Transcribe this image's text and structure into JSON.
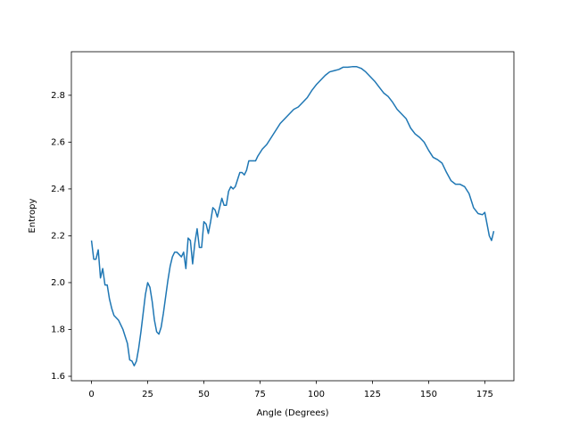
{
  "chart_data": {
    "type": "line",
    "xlabel": "Angle (Degrees)",
    "ylabel": "Entropy",
    "x": [
      0,
      1,
      2,
      3,
      4,
      5,
      6,
      7,
      8,
      9,
      10,
      11,
      12,
      13,
      14,
      15,
      16,
      17,
      18,
      19,
      20,
      21,
      22,
      23,
      24,
      25,
      26,
      27,
      28,
      29,
      30,
      31,
      32,
      33,
      34,
      35,
      36,
      37,
      38,
      39,
      40,
      41,
      42,
      43,
      44,
      45,
      46,
      47,
      48,
      49,
      50,
      51,
      52,
      53,
      54,
      55,
      56,
      57,
      58,
      59,
      60,
      61,
      62,
      63,
      64,
      65,
      66,
      67,
      68,
      69,
      70,
      71,
      72,
      73,
      74,
      76,
      78,
      80,
      82,
      84,
      86,
      88,
      90,
      92,
      94,
      96,
      98,
      100,
      102,
      104,
      106,
      108,
      110,
      112,
      114,
      116,
      118,
      120,
      122,
      124,
      126,
      128,
      130,
      132,
      134,
      136,
      138,
      140,
      142,
      144,
      146,
      148,
      150,
      152,
      154,
      156,
      158,
      160,
      162,
      164,
      166,
      168,
      170,
      172,
      174,
      175,
      176,
      177,
      178,
      179
    ],
    "series": [
      {
        "color": "#1f77b4",
        "values": [
          2.18,
          2.1,
          2.1,
          2.14,
          2.02,
          2.06,
          1.99,
          1.99,
          1.93,
          1.89,
          1.86,
          1.85,
          1.84,
          1.82,
          1.8,
          1.77,
          1.74,
          1.67,
          1.665,
          1.645,
          1.665,
          1.72,
          1.79,
          1.87,
          1.95,
          2.0,
          1.98,
          1.92,
          1.84,
          1.79,
          1.78,
          1.81,
          1.87,
          1.94,
          2.01,
          2.07,
          2.11,
          2.13,
          2.13,
          2.12,
          2.11,
          2.13,
          2.06,
          2.19,
          2.18,
          2.08,
          2.17,
          2.23,
          2.15,
          2.15,
          2.26,
          2.25,
          2.21,
          2.26,
          2.32,
          2.31,
          2.28,
          2.32,
          2.36,
          2.33,
          2.33,
          2.39,
          2.41,
          2.4,
          2.41,
          2.44,
          2.47,
          2.47,
          2.46,
          2.48,
          2.52,
          2.52,
          2.52,
          2.52,
          2.54,
          2.57,
          2.59,
          2.62,
          2.65,
          2.68,
          2.7,
          2.72,
          2.74,
          2.75,
          2.77,
          2.79,
          2.82,
          2.845,
          2.865,
          2.885,
          2.9,
          2.905,
          2.91,
          2.92,
          2.92,
          2.922,
          2.922,
          2.915,
          2.9,
          2.88,
          2.86,
          2.835,
          2.81,
          2.795,
          2.77,
          2.74,
          2.72,
          2.7,
          2.66,
          2.635,
          2.62,
          2.6,
          2.565,
          2.535,
          2.525,
          2.51,
          2.47,
          2.435,
          2.42,
          2.42,
          2.41,
          2.38,
          2.32,
          2.295,
          2.29,
          2.3,
          2.25,
          2.2,
          2.18,
          2.22
        ]
      }
    ],
    "xlim": [
      -8.95,
      187.95
    ],
    "xticks": [
      0,
      25,
      50,
      75,
      100,
      125,
      150,
      175
    ],
    "ylim": [
      1.581,
      2.986
    ],
    "yticks": [
      1.6,
      1.8,
      {
        "value": 2,
        "label": "2.0"
      },
      2.2,
      2.4,
      2.6,
      2.8
    ],
    "grid": false
  }
}
